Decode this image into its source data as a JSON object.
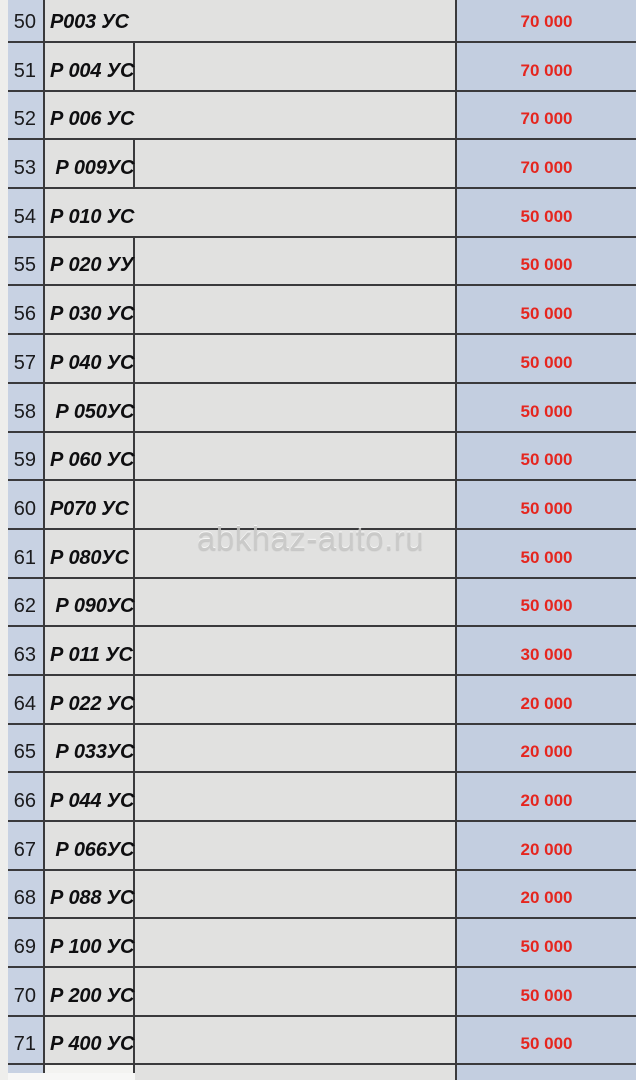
{
  "watermark": "abkhaz-auto.ru",
  "colors": {
    "page_bg": "#eeeeec",
    "num_col_bg": "#c8d2e3",
    "gray_cell_bg": "#e1e1e0",
    "price_col_bg": "#c3cee0",
    "border_color": "#3a3a3c",
    "price_red": "#e5261f",
    "plate_text": "#0e0e10",
    "num_text": "#1b1b1d",
    "watermark_color": "#c7c7c5"
  },
  "table": {
    "rows": [
      {
        "num": "50",
        "plate": "Р003 УС",
        "price": "70 000",
        "divider": false
      },
      {
        "num": "51",
        "plate": "Р 004 УС",
        "price": "70 000",
        "divider": true
      },
      {
        "num": "52",
        "plate": "Р 006 УС",
        "price": "70 000",
        "divider": false
      },
      {
        "num": "53",
        "plate": " Р 009УС",
        "price": "70 000",
        "divider": true
      },
      {
        "num": "54",
        "plate": "Р 010 УС",
        "price": "50 000",
        "divider": false
      },
      {
        "num": "55",
        "plate": "Р 020 УУ",
        "price": "50 000",
        "divider": true
      },
      {
        "num": "56",
        "plate": "Р 030 УС",
        "price": "50 000",
        "divider": true
      },
      {
        "num": "57",
        "plate": "Р 040 УС",
        "price": "50 000",
        "divider": true
      },
      {
        "num": "58",
        "plate": " Р 050УС",
        "price": "50 000",
        "divider": true
      },
      {
        "num": "59",
        "plate": "Р 060 УС",
        "price": "50 000",
        "divider": true
      },
      {
        "num": "60",
        "plate": "Р070 УС",
        "price": "50 000",
        "divider": true
      },
      {
        "num": "61",
        "plate": "Р 080УС",
        "price": "50 000",
        "divider": true
      },
      {
        "num": "62",
        "plate": " Р 090УС",
        "price": "50 000",
        "divider": true
      },
      {
        "num": "63",
        "plate": "Р 011 УС",
        "price": "30 000",
        "divider": true
      },
      {
        "num": "64",
        "plate": "Р 022 УС",
        "price": "20 000",
        "divider": true
      },
      {
        "num": "65",
        "plate": " Р 033УС",
        "price": "20 000",
        "divider": true
      },
      {
        "num": "66",
        "plate": "Р 044 УС",
        "price": "20 000",
        "divider": true
      },
      {
        "num": "67",
        "plate": " Р 066УС",
        "price": "20 000",
        "divider": true
      },
      {
        "num": "68",
        "plate": "Р 088 УС",
        "price": "20 000",
        "divider": true
      },
      {
        "num": "69",
        "plate": "Р 100 УС",
        "price": "50 000",
        "divider": true
      },
      {
        "num": "70",
        "plate": "Р 200 УС",
        "price": "50 000",
        "divider": true
      },
      {
        "num": "71",
        "plate": "Р 400 УС",
        "price": "50 000",
        "divider": true
      }
    ]
  }
}
